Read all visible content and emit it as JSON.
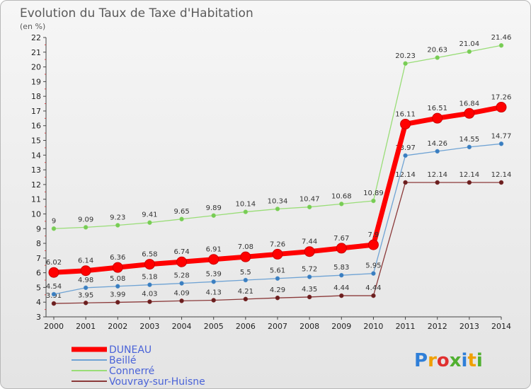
{
  "chart_data": {
    "type": "line",
    "title": "Evolution du Taux de Taxe d'Habitation",
    "unit_label": "(en %)",
    "x": [
      "2000",
      "2001",
      "2002",
      "2003",
      "2004",
      "2005",
      "2006",
      "2007",
      "2008",
      "2009",
      "2010",
      "2011",
      "2012",
      "2013",
      "2014"
    ],
    "ylim": [
      3,
      22
    ],
    "yticks": [
      3,
      4,
      5,
      6,
      7,
      8,
      9,
      10,
      11,
      12,
      13,
      14,
      15,
      16,
      17,
      18,
      19,
      20,
      21,
      22
    ],
    "grid": false,
    "legend_position": "bottom-left",
    "series": [
      {
        "name": "DUNEAU",
        "color": "#ff0000",
        "emphasis": true,
        "values": [
          6.02,
          6.14,
          6.36,
          6.58,
          6.74,
          6.91,
          7.08,
          7.26,
          7.44,
          7.67,
          7.9,
          16.11,
          16.51,
          16.84,
          17.26
        ],
        "labels": [
          "6.02",
          "6.14",
          "6.36",
          "6.58",
          "6.74",
          "6.91",
          "7.08",
          "7.26",
          "7.44",
          "7.67",
          "7.9",
          "16.11",
          "16.51",
          "16.84",
          "17.26"
        ]
      },
      {
        "name": "Beillé",
        "color": "#6fa3d4",
        "marker": "#3a7ec0",
        "values": [
          4.54,
          4.98,
          5.08,
          5.18,
          5.28,
          5.39,
          5.5,
          5.61,
          5.72,
          5.83,
          5.95,
          13.97,
          14.26,
          14.55,
          14.77
        ],
        "labels": [
          "4.54",
          "4.98",
          "5.08",
          "5.18",
          "5.28",
          "5.39",
          "5.5",
          "5.61",
          "5.72",
          "5.83",
          "5.95",
          "13.97",
          "14.26",
          "14.55",
          "14.77"
        ]
      },
      {
        "name": "Connerré",
        "color": "#99dd77",
        "marker": "#77cc55",
        "values": [
          9,
          9.09,
          9.23,
          9.41,
          9.65,
          9.89,
          10.14,
          10.34,
          10.47,
          10.68,
          10.89,
          20.23,
          20.63,
          21.04,
          21.46
        ],
        "labels": [
          "9",
          "9.09",
          "9.23",
          "9.41",
          "9.65",
          "9.89",
          "10.14",
          "10.34",
          "10.47",
          "10.68",
          "10.89",
          "20.23",
          "20.63",
          "21.04",
          "21.46"
        ]
      },
      {
        "name": "Vouvray-sur-Huisne",
        "color": "#8b3a3a",
        "marker": "#6a1f1f",
        "values": [
          3.91,
          3.95,
          3.99,
          4.03,
          4.09,
          4.13,
          4.21,
          4.29,
          4.35,
          4.44,
          4.44,
          12.14,
          12.14,
          12.14,
          12.14
        ],
        "labels": [
          "3.91",
          "3.95",
          "3.99",
          "4.03",
          "4.09",
          "4.13",
          "4.21",
          "4.29",
          "4.35",
          "4.44",
          "4.44",
          "12.14",
          "12.14",
          "12.14",
          "12.14"
        ]
      }
    ]
  },
  "logo": {
    "letters": [
      "P",
      "r",
      "o",
      "x",
      "i",
      "t",
      "i"
    ],
    "colors": [
      "#2f7fd8",
      "#f0a000",
      "#e03030",
      "#50b030",
      "#2f7fd8",
      "#f0a000",
      "#50b030"
    ]
  }
}
